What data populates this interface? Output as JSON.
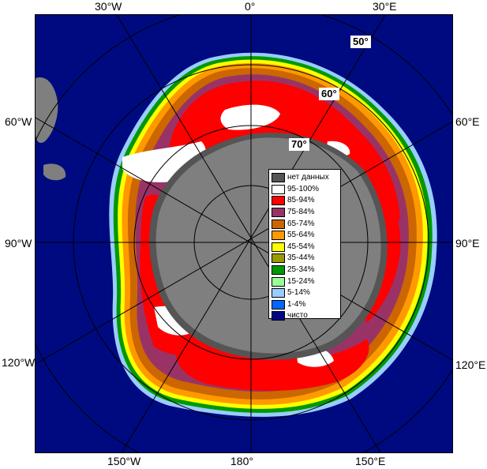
{
  "map": {
    "colors": {
      "ocean": "#000a80",
      "land": "#7f7f7f",
      "no_data": "#555555",
      "graticule": "#000000"
    }
  },
  "labels": {
    "top": {
      "w30": "30°W",
      "zero": "0°",
      "e30": "30°E"
    },
    "left": {
      "w60": "60°W",
      "w90": "90°W",
      "w120": "120°W"
    },
    "right": {
      "e60": "60°E",
      "e90": "90°E",
      "e120": "120°E"
    },
    "bottom": {
      "w150": "150°W",
      "d180": "180°",
      "e150": "150°E"
    },
    "lat": {
      "l50": "50°",
      "l60": "60°",
      "l70": "70°"
    }
  },
  "legend": {
    "items": [
      {
        "label": "нет данных",
        "color": "#555555"
      },
      {
        "label": "95-100%",
        "color": "#ffffff"
      },
      {
        "label": "85-94%",
        "color": "#ff0000"
      },
      {
        "label": "75-84%",
        "color": "#993366"
      },
      {
        "label": "65-74%",
        "color": "#cc6600"
      },
      {
        "label": "55-64%",
        "color": "#ff9900"
      },
      {
        "label": "45-54%",
        "color": "#ffff00"
      },
      {
        "label": "35-44%",
        "color": "#999900"
      },
      {
        "label": "25-34%",
        "color": "#009900"
      },
      {
        "label": "15-24%",
        "color": "#99ff99"
      },
      {
        "label": "5-14%",
        "color": "#99ccff"
      },
      {
        "label": "1-4%",
        "color": "#0066ff"
      },
      {
        "label": "чисто",
        "color": "#000a80"
      }
    ]
  }
}
